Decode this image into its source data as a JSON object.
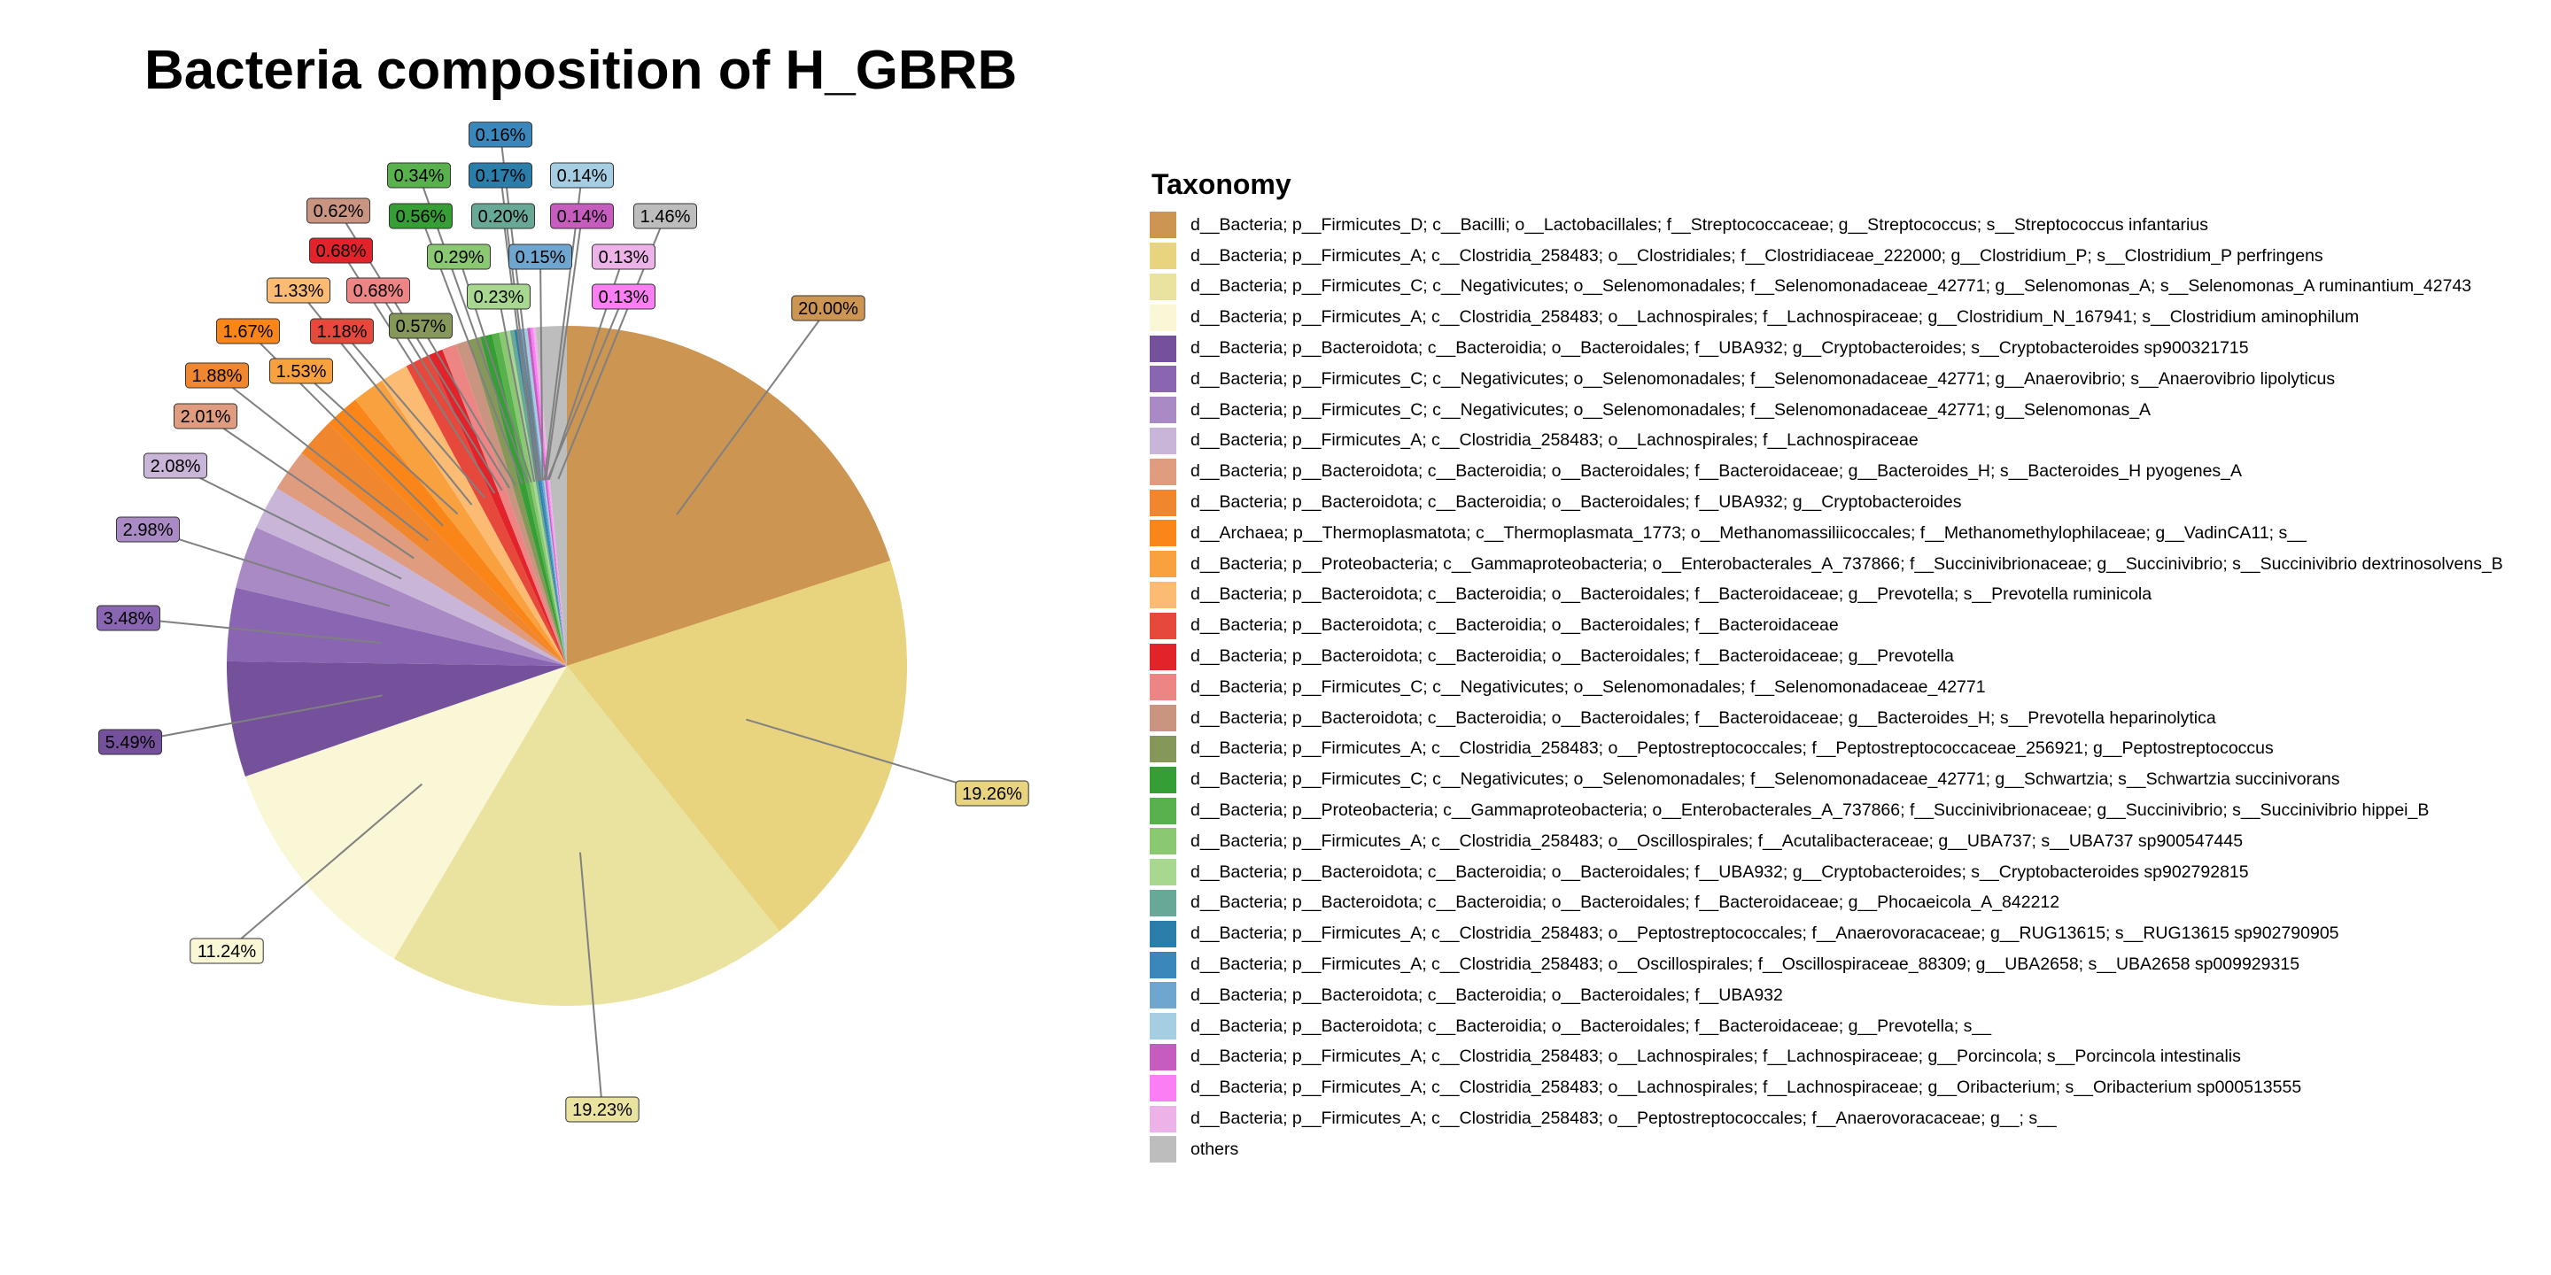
{
  "chart_data": {
    "type": "pie",
    "title": "Bacteria composition of H_GBRB",
    "legend_title": "Taxonomy",
    "legend_placement": "right",
    "slices": [
      {
        "label": "d__Bacteria; p__Firmicutes_D; c__Bacilli; o__Lactobacillales; f__Streptococcaceae; g__Streptococcus; s__Streptococcus infantarius",
        "value": 20.0,
        "text": "20.00%",
        "color": "#CC9552"
      },
      {
        "label": "d__Bacteria; p__Firmicutes_A; c__Clostridia_258483; o__Clostridiales; f__Clostridiaceae_222000; g__Clostridium_P; s__Clostridium_P perfringens",
        "value": 19.26,
        "text": "19.26%",
        "color": "#E8D47E"
      },
      {
        "label": "d__Bacteria; p__Firmicutes_C; c__Negativicutes; o__Selenomonadales; f__Selenomonadaceae_42771; g__Selenomonas_A; s__Selenomonas_A ruminantium_42743",
        "value": 19.23,
        "text": "19.23%",
        "color": "#EAE29F"
      },
      {
        "label": "d__Bacteria; p__Firmicutes_A; c__Clostridia_258483; o__Lachnospirales; f__Lachnospiraceae; g__Clostridium_N_167941; s__Clostridium aminophilum",
        "value": 11.24,
        "text": "11.24%",
        "color": "#F9F7D6"
      },
      {
        "label": "d__Bacteria; p__Bacteroidota; c__Bacteroidia; o__Bacteroidales; f__UBA932; g__Cryptobacteroides; s__Cryptobacteroides sp900321715",
        "value": 5.49,
        "text": "5.49%",
        "color": "#74519A"
      },
      {
        "label": "d__Bacteria; p__Firmicutes_C; c__Negativicutes; o__Selenomonadales; f__Selenomonadaceae_42771; g__Anaerovibrio; s__Anaerovibrio lipolyticus",
        "value": 3.48,
        "text": "3.48%",
        "color": "#8A65B2"
      },
      {
        "label": "d__Bacteria; p__Firmicutes_C; c__Negativicutes; o__Selenomonadales; f__Selenomonadaceae_42771; g__Selenomonas_A",
        "value": 2.98,
        "text": "2.98%",
        "color": "#A98AC4"
      },
      {
        "label": "d__Bacteria; p__Firmicutes_A; c__Clostridia_258483; o__Lachnospirales; f__Lachnospiraceae",
        "value": 2.08,
        "text": "2.08%",
        "color": "#C9B5D8"
      },
      {
        "label": "d__Bacteria; p__Bacteroidota; c__Bacteroidia; o__Bacteroidales; f__Bacteroidaceae; g__Bacteroides_H; s__Bacteroides_H pyogenes_A",
        "value": 2.01,
        "text": "2.01%",
        "color": "#DF9C7F"
      },
      {
        "label": "d__Bacteria; p__Bacteroidota; c__Bacteroidia; o__Bacteroidales; f__UBA932; g__Cryptobacteroides",
        "value": 1.88,
        "text": "1.88%",
        "color": "#F0872E"
      },
      {
        "label": "d__Archaea; p__Thermoplasmatota; c__Thermoplasmata_1773; o__Methanomassiliicoccales; f__Methanomethylophilaceae; g__VadinCA11; s__",
        "value": 1.67,
        "text": "1.67%",
        "color": "#FA8518"
      },
      {
        "label": "d__Bacteria; p__Proteobacteria; c__Gammaproteobacteria; o__Enterobacterales_A_737866; f__Succinivibrionaceae; g__Succinivibrio; s__Succinivibrio dextrinosolvens_B",
        "value": 1.53,
        "text": "1.53%",
        "color": "#F9A13E"
      },
      {
        "label": "d__Bacteria; p__Bacteroidota; c__Bacteroidia; o__Bacteroidales; f__Bacteroidaceae; g__Prevotella; s__Prevotella ruminicola",
        "value": 1.33,
        "text": "1.33%",
        "color": "#FBBB72"
      },
      {
        "label": "d__Bacteria; p__Bacteroidota; c__Bacteroidia; o__Bacteroidales; f__Bacteroidaceae",
        "value": 1.18,
        "text": "1.18%",
        "color": "#E6493C"
      },
      {
        "label": "d__Bacteria; p__Bacteroidota; c__Bacteroidia; o__Bacteroidales; f__Bacteroidaceae; g__Prevotella",
        "value": 0.68,
        "text": "0.68%",
        "color": "#E2232A"
      },
      {
        "label": "d__Bacteria; p__Firmicutes_C; c__Negativicutes; o__Selenomonadales; f__Selenomonadaceae_42771",
        "value": 0.68,
        "text": "0.68%",
        "color": "#EE8585"
      },
      {
        "label": "d__Bacteria; p__Bacteroidota; c__Bacteroidia; o__Bacteroidales; f__Bacteroidaceae; g__Bacteroides_H; s__Prevotella heparinolytica",
        "value": 0.62,
        "text": "0.62%",
        "color": "#C99580"
      },
      {
        "label": "d__Bacteria; p__Firmicutes_A; c__Clostridia_258483; o__Peptostreptococcales; f__Peptostreptococcaceae_256921; g__Peptostreptococcus",
        "value": 0.57,
        "text": "0.57%",
        "color": "#85985A"
      },
      {
        "label": "d__Bacteria; p__Firmicutes_C; c__Negativicutes; o__Selenomonadales; f__Selenomonadaceae_42771; g__Schwartzia; s__Schwartzia succinivorans",
        "value": 0.56,
        "text": "0.56%",
        "color": "#359E35"
      },
      {
        "label": "d__Bacteria; p__Proteobacteria; c__Gammaproteobacteria; o__Enterobacterales_A_737866; f__Succinivibrionaceae; g__Succinivibrio; s__Succinivibrio hippei_B",
        "value": 0.34,
        "text": "0.34%",
        "color": "#58B14C"
      },
      {
        "label": "d__Bacteria; p__Firmicutes_A; c__Clostridia_258483; o__Oscillospirales; f__Acutalibacteraceae; g__UBA737; s__UBA737 sp900547445",
        "value": 0.29,
        "text": "0.29%",
        "color": "#8AC872"
      },
      {
        "label": "d__Bacteria; p__Bacteroidota; c__Bacteroidia; o__Bacteroidales; f__UBA932; g__Cryptobacteroides; s__Cryptobacteroides sp902792815",
        "value": 0.23,
        "text": "0.23%",
        "color": "#A8D890"
      },
      {
        "label": "d__Bacteria; p__Bacteroidota; c__Bacteroidia; o__Bacteroidales; f__Bacteroidaceae; g__Phocaeicola_A_842212",
        "value": 0.2,
        "text": "0.20%",
        "color": "#68A896"
      },
      {
        "label": "d__Bacteria; p__Firmicutes_A; c__Clostridia_258483; o__Peptostreptococcales; f__Anaerovoracaceae; g__RUG13615; s__RUG13615 sp902790905",
        "value": 0.17,
        "text": "0.17%",
        "color": "#2B7DAA"
      },
      {
        "label": "d__Bacteria; p__Firmicutes_A; c__Clostridia_258483; o__Oscillospirales; f__Oscillospiraceae_88309; g__UBA2658; s__UBA2658 sp009929315",
        "value": 0.16,
        "text": "0.16%",
        "color": "#3A87BC"
      },
      {
        "label": "d__Bacteria; p__Bacteroidota; c__Bacteroidia; o__Bacteroidales; f__UBA932",
        "value": 0.15,
        "text": "0.15%",
        "color": "#6FA6CF"
      },
      {
        "label": "d__Bacteria; p__Bacteroidota; c__Bacteroidia; o__Bacteroidales; f__Bacteroidaceae; g__Prevotella; s__",
        "value": 0.14,
        "text": "0.14%",
        "color": "#A6CEE3"
      },
      {
        "label": "d__Bacteria; p__Firmicutes_A; c__Clostridia_258483; o__Lachnospirales; f__Lachnospiraceae; g__Porcincola; s__Porcincola intestinalis",
        "value": 0.14,
        "text": "0.14%",
        "color": "#C55CBE"
      },
      {
        "label": "d__Bacteria; p__Firmicutes_A; c__Clostridia_258483; o__Lachnospirales; f__Lachnospiraceae; g__Oribacterium; s__Oribacterium sp000513555",
        "value": 0.13,
        "text": "0.13%",
        "color": "#FB7EF4"
      },
      {
        "label": "d__Bacteria; p__Firmicutes_A; c__Clostridia_258483; o__Peptostreptococcales; f__Anaerovoracaceae; g__; s__",
        "value": 0.13,
        "text": "0.13%",
        "color": "#EDB2E8"
      },
      {
        "label": "others",
        "value": 1.46,
        "text": "1.46%",
        "color": "#BDBDBD"
      }
    ]
  }
}
